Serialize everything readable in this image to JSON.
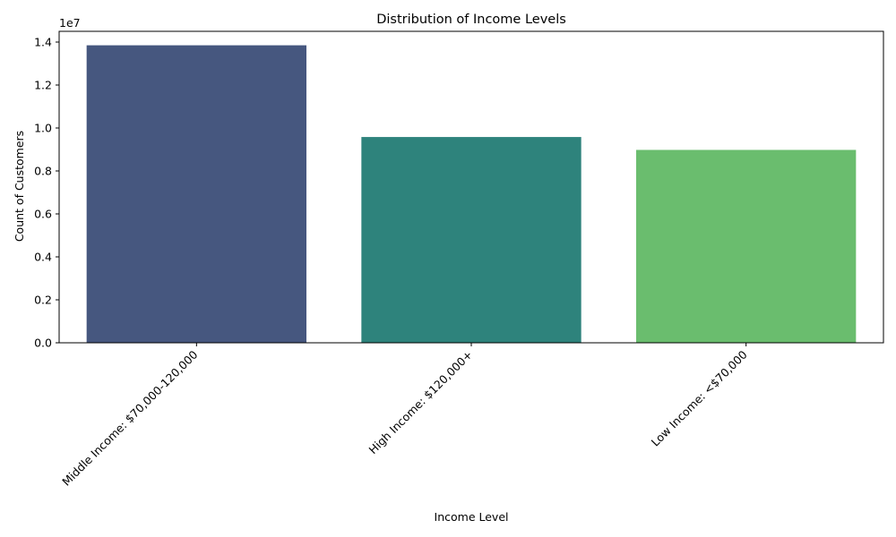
{
  "chart_data": {
    "type": "bar",
    "title": "Distribution of Income Levels",
    "xlabel": "Income Level",
    "ylabel": "Count of Customers",
    "categories": [
      "Middle Income: $70,000-120,000",
      "High Income: $120,000+",
      "Low Income: <$70,000"
    ],
    "values": [
      13850000,
      9580000,
      8980000
    ],
    "colors": [
      "#46577f",
      "#2e837c",
      "#6abd6e"
    ],
    "ylim": [
      0,
      14500000
    ],
    "y_ticks": [
      0,
      2000000,
      4000000,
      6000000,
      8000000,
      10000000,
      12000000,
      14000000
    ],
    "y_tick_labels": [
      "0.0",
      "0.2",
      "0.4",
      "0.6",
      "0.8",
      "1.0",
      "1.2",
      "1.4"
    ],
    "y_offset_label": "1e7",
    "x_tick_rotation_deg": 45,
    "grid": false,
    "legend": "none"
  }
}
